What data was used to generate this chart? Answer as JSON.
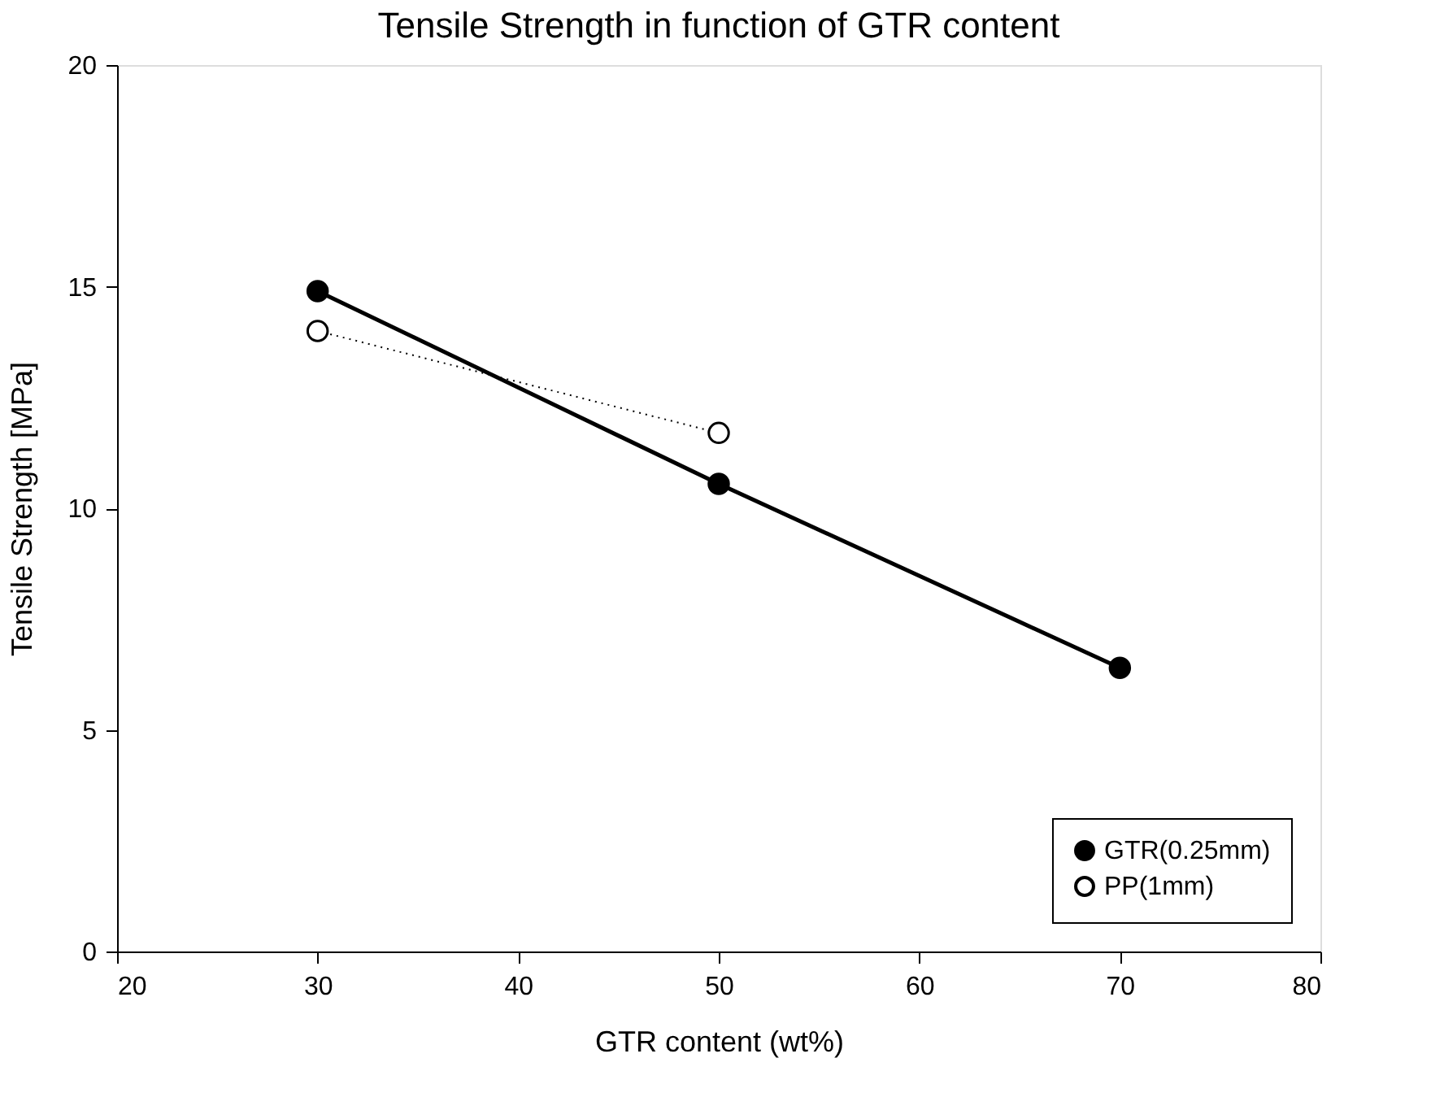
{
  "chart_data": {
    "type": "line",
    "title": "Tensile Strength in function of GTR content",
    "xlabel": "GTR content (wt%)",
    "ylabel": "Tensile Strength [MPa]",
    "x": [
      30,
      50,
      70
    ],
    "series": [
      {
        "name": "GTR(0.25mm)",
        "color": "#000000",
        "values": [
          14.9,
          10.55,
          6.4
        ],
        "line_style": "solid"
      },
      {
        "name": "PP(1mm)",
        "color": "#000000",
        "x": [
          30,
          50
        ],
        "values": [
          14.0,
          11.7
        ],
        "line_style": "dotted"
      }
    ],
    "xlim": [
      20,
      80
    ],
    "xticks": [
      20,
      30,
      40,
      50,
      60,
      70,
      80
    ],
    "ylim": [
      0,
      20
    ],
    "yticks": [
      0,
      5,
      10,
      15,
      20
    ],
    "grid": false,
    "legend": "bottom right",
    "marker": "circle"
  }
}
